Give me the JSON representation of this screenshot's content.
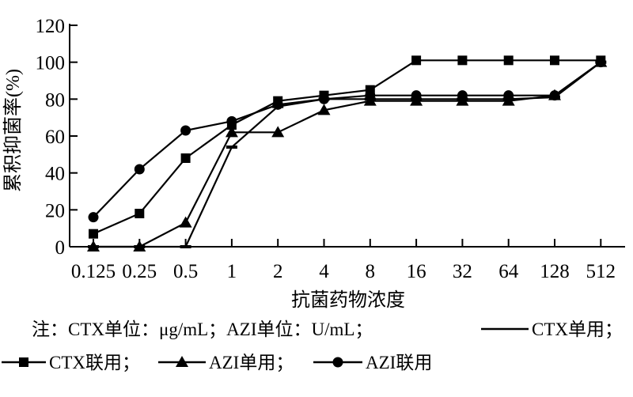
{
  "chart_data": {
    "type": "line",
    "ylabel": "累积抑菌率(%)",
    "xlabel": "抗菌药物浓度",
    "categories": [
      "0.125",
      "0.25",
      "0.5",
      "1",
      "2",
      "4",
      "8",
      "16",
      "32",
      "64",
      "128",
      "512"
    ],
    "yticks": [
      "0",
      "20",
      "40",
      "60",
      "80",
      "100",
      "120"
    ],
    "ylim": [
      0,
      120
    ],
    "grid": false,
    "note": "注：CTX单位：μg/mL；AZI单位：U/mL；",
    "series": [
      {
        "name": "CTX单用",
        "marker": "dash",
        "values": [
          0,
          0,
          0,
          54,
          76,
          80,
          80,
          80,
          80,
          80,
          81,
          100
        ]
      },
      {
        "name": "CTX联用",
        "marker": "square",
        "values": [
          7,
          18,
          48,
          66,
          79,
          82,
          85,
          101,
          101,
          101,
          101,
          101
        ]
      },
      {
        "name": "AZI单用",
        "marker": "triangle",
        "values": [
          0,
          0,
          13,
          62,
          62,
          74,
          79,
          79,
          79,
          79,
          82,
          100
        ]
      },
      {
        "name": "AZI联用",
        "marker": "circle",
        "values": [
          16,
          42,
          63,
          68,
          77,
          80,
          82,
          82,
          82,
          82,
          82,
          100
        ]
      }
    ],
    "legend": {
      "position": "bottom"
    }
  }
}
